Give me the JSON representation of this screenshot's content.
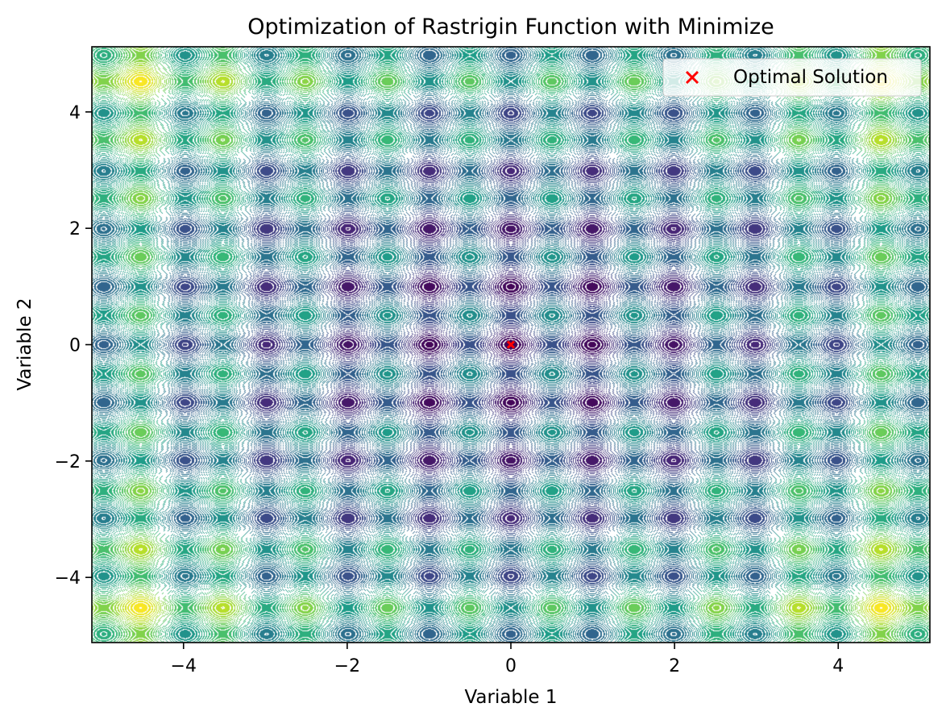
{
  "chart_data": {
    "type": "contour",
    "title": "Optimization of Rastrigin Function with Minimize",
    "xlabel": "Variable 1",
    "ylabel": "Variable 2",
    "function": "rastrigin",
    "xlim": [
      -5.12,
      5.12
    ],
    "ylim": [
      -5.12,
      5.12
    ],
    "x_ticks": [
      -4,
      -2,
      0,
      2,
      4
    ],
    "y_ticks": [
      -4,
      -2,
      0,
      2,
      4
    ],
    "x_tick_labels": [
      "−4",
      "−2",
      "0",
      "2",
      "4"
    ],
    "y_tick_labels": [
      "−4",
      "−2",
      "0",
      "2",
      "4"
    ],
    "colormap": "viridis",
    "contour_line_color": "#ffffff",
    "grid": false,
    "legend_position": "top-right",
    "series": [
      {
        "name": "Optimal Solution",
        "type": "scatter",
        "marker": "x",
        "color": "#ff0000",
        "points": [
          {
            "x": 0,
            "y": 0
          }
        ]
      }
    ]
  }
}
